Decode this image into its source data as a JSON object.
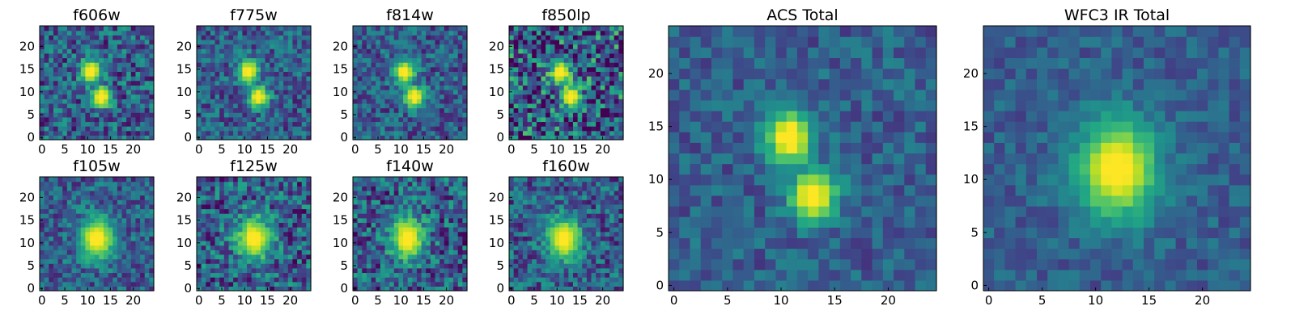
{
  "chart_data": [
    {
      "type": "heatmap",
      "title": "f606w",
      "colormap": "viridis",
      "xlim": [
        0,
        24
      ],
      "ylim": [
        0,
        24
      ],
      "xticks": [
        "0",
        "5",
        "10",
        "15",
        "20"
      ],
      "yticks": [
        "0",
        "5",
        "10",
        "15",
        "20"
      ],
      "source": {
        "center": [
          12,
          11.5
        ],
        "elongated": true,
        "noise": 0.55,
        "peak": 1.0
      }
    },
    {
      "type": "heatmap",
      "title": "f775w",
      "colormap": "viridis",
      "xlim": [
        0,
        24
      ],
      "ylim": [
        0,
        24
      ],
      "xticks": [
        "0",
        "5",
        "10",
        "15",
        "20"
      ],
      "yticks": [
        "0",
        "5",
        "10",
        "15",
        "20"
      ],
      "source": {
        "center": [
          12,
          11.5
        ],
        "elongated": true,
        "noise": 0.45,
        "peak": 1.0
      }
    },
    {
      "type": "heatmap",
      "title": "f814w",
      "colormap": "viridis",
      "xlim": [
        0,
        24
      ],
      "ylim": [
        0,
        24
      ],
      "xticks": [
        "0",
        "5",
        "10",
        "15",
        "20"
      ],
      "yticks": [
        "0",
        "5",
        "10",
        "15",
        "20"
      ],
      "source": {
        "center": [
          12,
          11.5
        ],
        "elongated": true,
        "noise": 0.45,
        "peak": 1.0
      }
    },
    {
      "type": "heatmap",
      "title": "f850lp",
      "colormap": "viridis",
      "xlim": [
        0,
        24
      ],
      "ylim": [
        0,
        24
      ],
      "xticks": [
        "0",
        "5",
        "10",
        "15",
        "20"
      ],
      "yticks": [
        "0",
        "5",
        "10",
        "15",
        "20"
      ],
      "source": {
        "center": [
          12,
          11.5
        ],
        "elongated": true,
        "noise": 0.85,
        "peak": 1.0
      }
    },
    {
      "type": "heatmap",
      "title": "f105w",
      "colormap": "viridis",
      "xlim": [
        0,
        24
      ],
      "ylim": [
        0,
        24
      ],
      "xticks": [
        "0",
        "5",
        "10",
        "15",
        "20"
      ],
      "yticks": [
        "0",
        "5",
        "10",
        "15",
        "20"
      ],
      "source": {
        "center": [
          12,
          11
        ],
        "elongated": false,
        "noise": 0.45,
        "peak": 1.0
      }
    },
    {
      "type": "heatmap",
      "title": "f125w",
      "colormap": "viridis",
      "xlim": [
        0,
        24
      ],
      "ylim": [
        0,
        24
      ],
      "xticks": [
        "0",
        "5",
        "10",
        "15",
        "20"
      ],
      "yticks": [
        "0",
        "5",
        "10",
        "15",
        "20"
      ],
      "source": {
        "center": [
          12,
          11
        ],
        "elongated": false,
        "noise": 0.6,
        "peak": 1.0
      }
    },
    {
      "type": "heatmap",
      "title": "f140w",
      "colormap": "viridis",
      "xlim": [
        0,
        24
      ],
      "ylim": [
        0,
        24
      ],
      "xticks": [
        "0",
        "5",
        "10",
        "15",
        "20"
      ],
      "yticks": [
        "0",
        "5",
        "10",
        "15",
        "20"
      ],
      "source": {
        "center": [
          11.5,
          11
        ],
        "elongated": false,
        "noise": 0.6,
        "peak": 1.0
      }
    },
    {
      "type": "heatmap",
      "title": "f160w",
      "colormap": "viridis",
      "xlim": [
        0,
        24
      ],
      "ylim": [
        0,
        24
      ],
      "xticks": [
        "0",
        "5",
        "10",
        "15",
        "20"
      ],
      "yticks": [
        "0",
        "5",
        "10",
        "15",
        "20"
      ],
      "source": {
        "center": [
          11.5,
          11
        ],
        "elongated": false,
        "noise": 0.5,
        "peak": 1.0
      }
    },
    {
      "type": "heatmap",
      "title": "ACS Total",
      "colormap": "viridis",
      "xlim": [
        0,
        24
      ],
      "ylim": [
        0,
        24
      ],
      "xticks": [
        "0",
        "5",
        "10",
        "15",
        "20"
      ],
      "yticks": [
        "0",
        "5",
        "10",
        "15",
        "20"
      ],
      "source": {
        "center": [
          12,
          11
        ],
        "elongated": true,
        "noise": 0.3,
        "peak": 1.0
      }
    },
    {
      "type": "heatmap",
      "title": "WFC3 IR Total",
      "colormap": "viridis",
      "xlim": [
        0,
        24
      ],
      "ylim": [
        0,
        24
      ],
      "xticks": [
        "0",
        "5",
        "10",
        "15",
        "20"
      ],
      "yticks": [
        "0",
        "5",
        "10",
        "15",
        "20"
      ],
      "source": {
        "center": [
          12,
          11
        ],
        "elongated": false,
        "noise": 0.25,
        "peak": 1.0
      }
    }
  ]
}
